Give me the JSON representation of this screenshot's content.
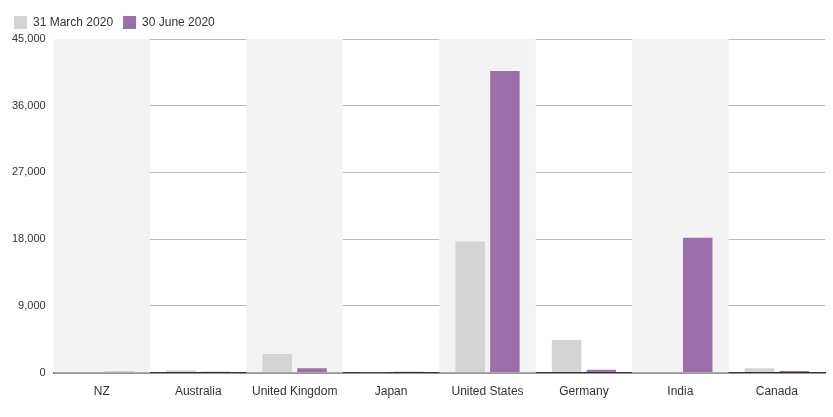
{
  "chart_data": {
    "type": "bar",
    "categories": [
      "NZ",
      "Australia",
      "United Kingdom",
      "Japan",
      "United States",
      "Germany",
      "India",
      "Canada"
    ],
    "series": [
      {
        "name": "31 March 2020",
        "color": "#d4d4d4",
        "values": [
          50,
          300,
          2500,
          50,
          17700,
          4400,
          50,
          600
        ]
      },
      {
        "name": "30 June 2020",
        "color": "#9b6fa8",
        "values": [
          100,
          100,
          600,
          100,
          40700,
          400,
          18200,
          200
        ]
      }
    ],
    "ylim": [
      0,
      45000
    ],
    "yticks": [
      0,
      {
        "value": 9000,
        "label": "9,000"
      },
      {
        "value": 18000,
        "label": "18,000"
      },
      {
        "value": 27000,
        "label": "27,000"
      },
      {
        "value": 36000,
        "label": "36,000"
      },
      {
        "value": 45000,
        "label": "45,000"
      }
    ],
    "grid": true,
    "legend": "top-left"
  }
}
